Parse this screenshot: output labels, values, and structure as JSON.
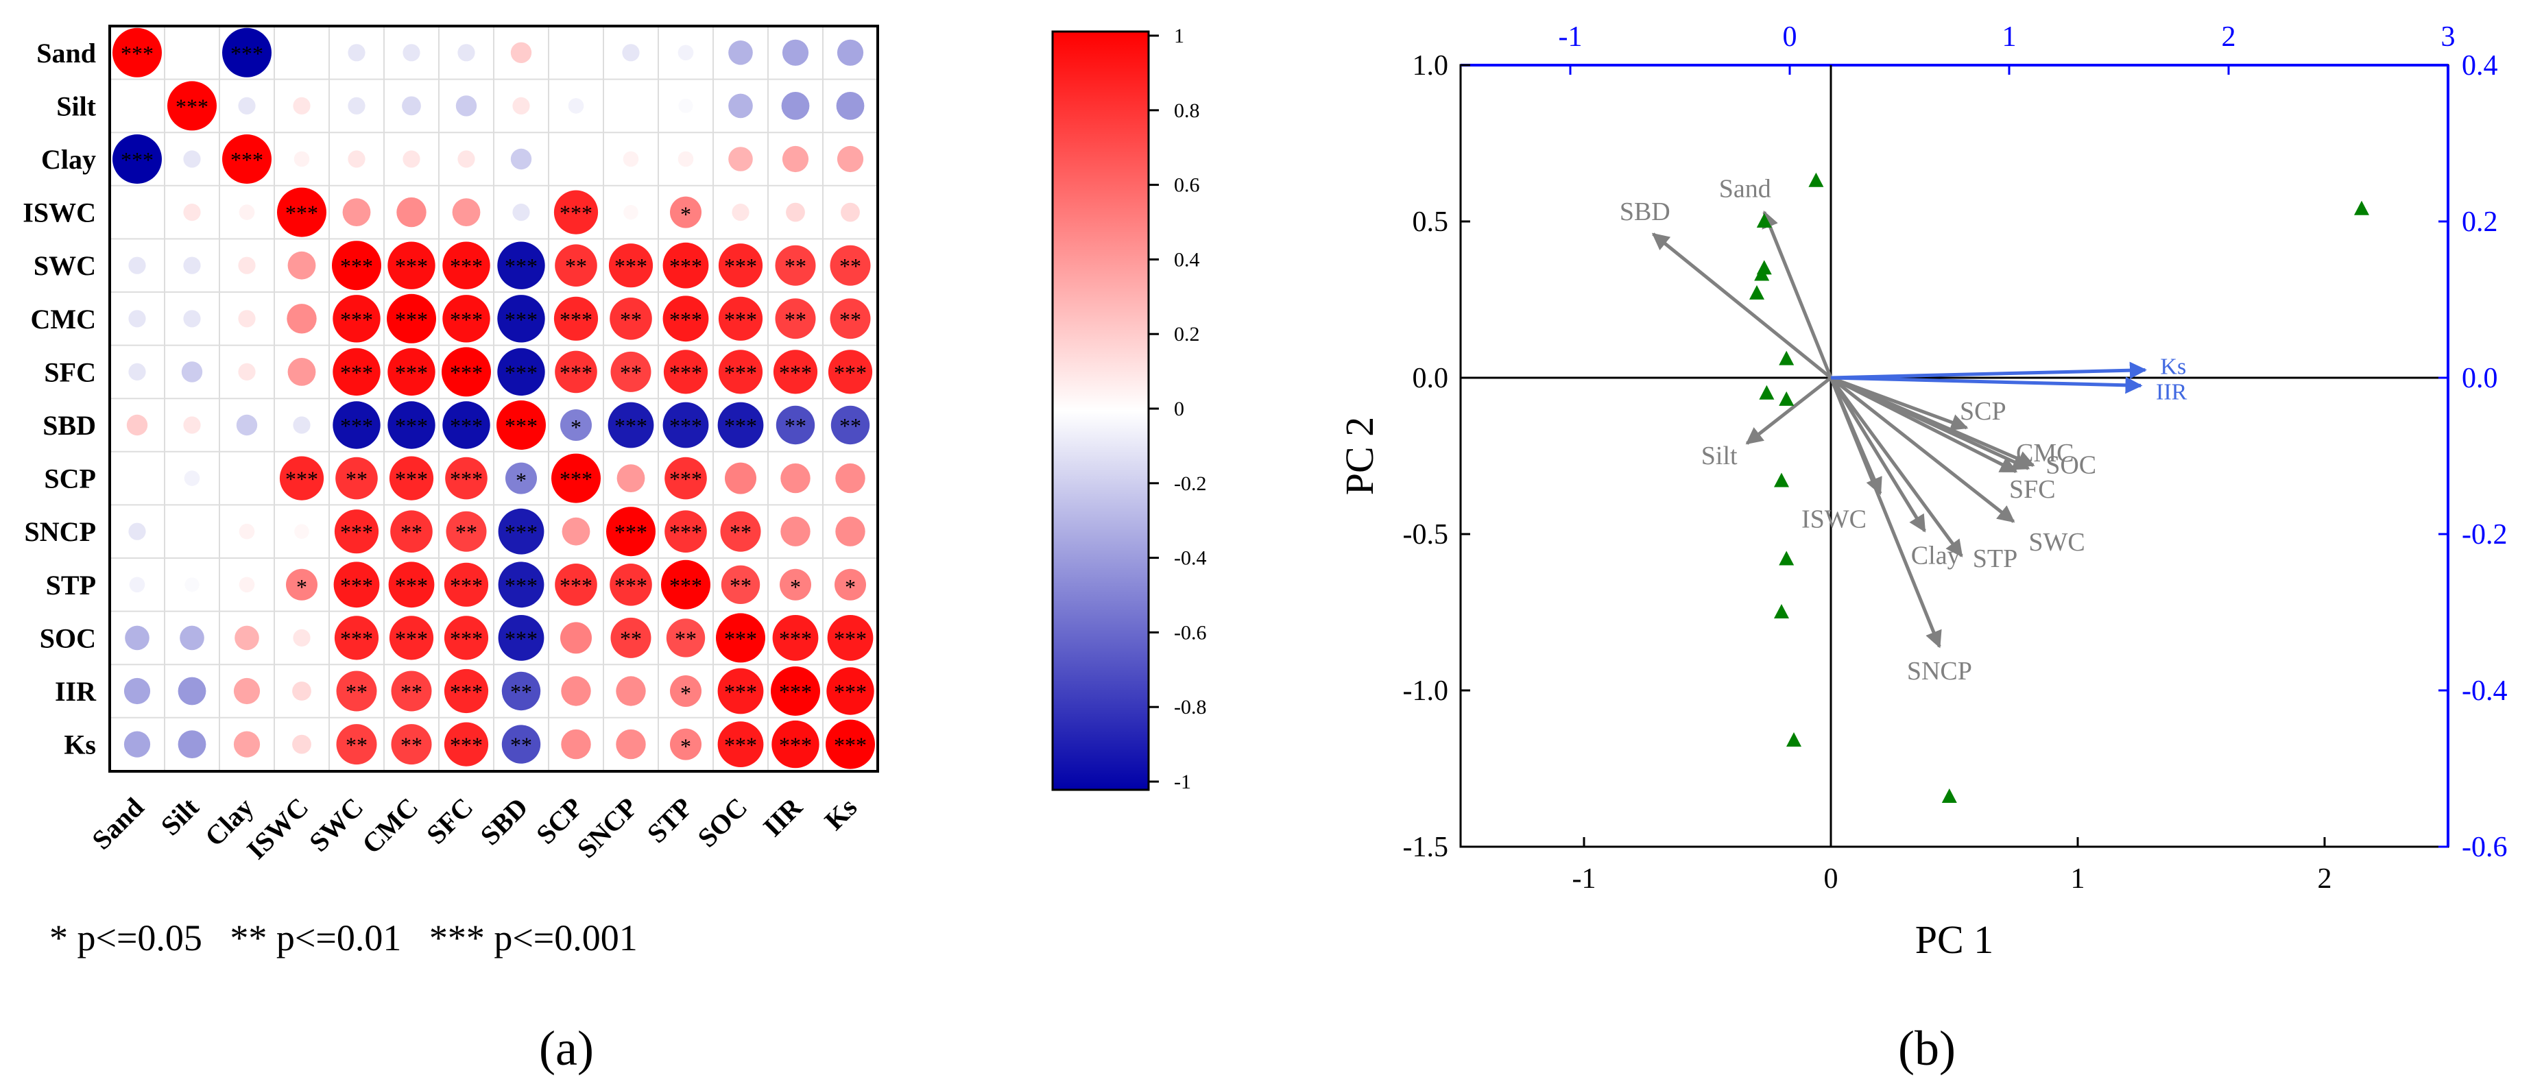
{
  "chart_data": [
    {
      "type": "heatmap",
      "panel_label": "(a)",
      "variables": [
        "Sand",
        "Silt",
        "Clay",
        "ISWC",
        "SWC",
        "CMC",
        "SFC",
        "SBD",
        "SCP",
        "SNCP",
        "STP",
        "SOC",
        "IIR",
        "Ks"
      ],
      "matrix": [
        [
          1.0,
          0.0,
          -1.0,
          0.0,
          -0.1,
          -0.1,
          -0.1,
          0.2,
          0.0,
          -0.1,
          -0.05,
          -0.3,
          -0.35,
          -0.35
        ],
        [
          0.0,
          1.0,
          -0.1,
          0.1,
          -0.1,
          -0.15,
          -0.2,
          0.1,
          -0.05,
          0.0,
          -0.02,
          -0.3,
          -0.4,
          -0.4
        ],
        [
          -1.0,
          -0.1,
          1.0,
          0.05,
          0.1,
          0.1,
          0.1,
          -0.2,
          0.0,
          0.05,
          0.05,
          0.3,
          0.35,
          0.35
        ],
        [
          0.0,
          0.1,
          0.05,
          1.0,
          0.4,
          0.45,
          0.4,
          -0.1,
          0.85,
          0.03,
          0.5,
          0.1,
          0.15,
          0.15
        ],
        [
          -0.1,
          -0.1,
          0.1,
          0.4,
          1.0,
          0.95,
          0.95,
          -0.95,
          0.8,
          0.85,
          0.9,
          0.85,
          0.75,
          0.75
        ],
        [
          -0.1,
          -0.1,
          0.1,
          0.45,
          0.95,
          1.0,
          0.95,
          -0.95,
          0.85,
          0.8,
          0.9,
          0.85,
          0.75,
          0.75
        ],
        [
          -0.1,
          -0.2,
          0.1,
          0.4,
          0.95,
          0.95,
          1.0,
          -0.95,
          0.8,
          0.75,
          0.85,
          0.85,
          0.85,
          0.85
        ],
        [
          0.2,
          0.1,
          -0.2,
          -0.1,
          -0.95,
          -0.95,
          -0.95,
          1.0,
          -0.5,
          -0.9,
          -0.9,
          -0.9,
          -0.7,
          -0.7
        ],
        [
          0.0,
          -0.05,
          0.0,
          0.85,
          0.8,
          0.85,
          0.8,
          -0.5,
          1.0,
          0.4,
          0.8,
          0.5,
          0.45,
          0.45
        ],
        [
          -0.1,
          0.0,
          0.05,
          0.03,
          0.85,
          0.8,
          0.75,
          -0.9,
          0.4,
          1.0,
          0.8,
          0.75,
          0.45,
          0.45
        ],
        [
          -0.05,
          -0.02,
          0.05,
          0.5,
          0.9,
          0.9,
          0.85,
          -0.9,
          0.8,
          0.8,
          1.0,
          0.7,
          0.5,
          0.5
        ],
        [
          -0.3,
          -0.3,
          0.3,
          0.1,
          0.85,
          0.85,
          0.85,
          -0.9,
          0.5,
          0.75,
          0.7,
          1.0,
          0.9,
          0.9
        ],
        [
          -0.35,
          -0.4,
          0.35,
          0.15,
          0.75,
          0.75,
          0.85,
          -0.7,
          0.45,
          0.45,
          0.5,
          0.9,
          1.0,
          0.95
        ],
        [
          -0.35,
          -0.4,
          0.35,
          0.15,
          0.75,
          0.75,
          0.85,
          -0.7,
          0.45,
          0.45,
          0.5,
          0.9,
          0.95,
          1.0
        ]
      ],
      "significance": [
        [
          "***",
          "",
          "***",
          "",
          "",
          "",
          "",
          "",
          "",
          "",
          "",
          "",
          "",
          ""
        ],
        [
          "",
          "***",
          "",
          "",
          "",
          "",
          "",
          "",
          "",
          "",
          "",
          "",
          "",
          ""
        ],
        [
          "***",
          "",
          "***",
          "",
          "",
          "",
          "",
          "",
          "",
          "",
          "",
          "",
          "",
          ""
        ],
        [
          "",
          "",
          "",
          "***",
          "",
          "",
          "",
          "",
          "***",
          "",
          "*",
          "",
          "",
          ""
        ],
        [
          "",
          "",
          "",
          "",
          "***",
          "***",
          "***",
          "***",
          "**",
          "***",
          "***",
          "***",
          "**",
          "**"
        ],
        [
          "",
          "",
          "",
          "",
          "***",
          "***",
          "***",
          "***",
          "***",
          "**",
          "***",
          "***",
          "**",
          "**"
        ],
        [
          "",
          "",
          "",
          "",
          "***",
          "***",
          "***",
          "***",
          "***",
          "**",
          "***",
          "***",
          "***",
          "***"
        ],
        [
          "",
          "",
          "",
          "",
          "***",
          "***",
          "***",
          "***",
          "*",
          "***",
          "***",
          "***",
          "**",
          "**"
        ],
        [
          "",
          "",
          "",
          "***",
          "**",
          "***",
          "***",
          "*",
          "***",
          "",
          "***",
          "",
          "",
          ""
        ],
        [
          "",
          "",
          "",
          "",
          "***",
          "**",
          "**",
          "***",
          "",
          "***",
          "***",
          "**",
          "",
          ""
        ],
        [
          "",
          "",
          "",
          "*",
          "***",
          "***",
          "***",
          "***",
          "***",
          "***",
          "***",
          "**",
          "*",
          "*"
        ],
        [
          "",
          "",
          "",
          "",
          "***",
          "***",
          "***",
          "***",
          "",
          "**",
          "**",
          "***",
          "***",
          "***"
        ],
        [
          "",
          "",
          "",
          "",
          "**",
          "**",
          "***",
          "**",
          "",
          "",
          "*",
          "***",
          "***",
          "***"
        ],
        [
          "",
          "",
          "",
          "",
          "**",
          "**",
          "***",
          "**",
          "",
          "",
          "*",
          "***",
          "***",
          "***"
        ]
      ],
      "colorbar": {
        "min": -1,
        "max": 1,
        "ticks": [
          "1",
          "0.8",
          "0.6",
          "0.4",
          "0.2",
          "0",
          "-0.2",
          "-0.4",
          "-0.6",
          "-0.8",
          "-1"
        ],
        "high_color": "#ff0000",
        "mid_color": "#ffffff",
        "low_color": "#0000a8"
      },
      "legend_text": "* p<=0.05   ** p<=0.01   *** p<=0.001"
    },
    {
      "type": "scatter",
      "subtype": "biplot",
      "panel_label": "(b)",
      "xlabel": "PC 1",
      "ylabel": "PC 2",
      "xlim": [
        -1.5,
        2.5
      ],
      "ylim": [
        -1.5,
        1.0
      ],
      "x_ticks": [
        "-1",
        "0",
        "1",
        "2"
      ],
      "y_ticks": [
        "1.0",
        "0.5",
        "0.0",
        "-0.5",
        "-1.0",
        "-1.5"
      ],
      "top_axis": {
        "range": [
          -1.5,
          3
        ],
        "ticks": [
          "-1",
          "0",
          "1",
          "2",
          "3"
        ],
        "color": "#0000ff"
      },
      "right_axis": {
        "range": [
          -0.6,
          0.4
        ],
        "ticks": [
          "0.4",
          "0.2",
          "0.0",
          "-0.2",
          "-0.4",
          "-0.6"
        ],
        "color": "#0000ff"
      },
      "points": [
        {
          "x": -0.06,
          "y": 0.63
        },
        {
          "x": -0.27,
          "y": 0.5
        },
        {
          "x": -0.27,
          "y": 0.35
        },
        {
          "x": -0.28,
          "y": 0.33
        },
        {
          "x": -0.3,
          "y": 0.27
        },
        {
          "x": -0.18,
          "y": 0.06
        },
        {
          "x": -0.26,
          "y": -0.05
        },
        {
          "x": -0.18,
          "y": -0.07
        },
        {
          "x": -0.2,
          "y": -0.33
        },
        {
          "x": -0.18,
          "y": -0.58
        },
        {
          "x": -0.2,
          "y": -0.75
        },
        {
          "x": -0.15,
          "y": -1.16
        },
        {
          "x": 0.48,
          "y": -1.34
        },
        {
          "x": 2.15,
          "y": 0.54
        }
      ],
      "point_color": "#008000",
      "loadings": [
        {
          "label": "Sand",
          "x": -0.27,
          "y": 0.53
        },
        {
          "label": "SBD",
          "x": -0.72,
          "y": 0.46
        },
        {
          "label": "Silt",
          "x": -0.34,
          "y": -0.21
        },
        {
          "label": "ISWC",
          "x": 0.2,
          "y": -0.37
        },
        {
          "label": "Clay",
          "x": 0.38,
          "y": -0.49
        },
        {
          "label": "STP",
          "x": 0.53,
          "y": -0.57
        },
        {
          "label": "SNCP",
          "x": 0.44,
          "y": -0.86
        },
        {
          "label": "SWC",
          "x": 0.74,
          "y": -0.46
        },
        {
          "label": "SFC",
          "x": 0.75,
          "y": -0.3
        },
        {
          "label": "CMC",
          "x": 0.8,
          "y": -0.29
        },
        {
          "label": "SOC",
          "x": 0.82,
          "y": -0.28
        },
        {
          "label": "SCP",
          "x": 0.55,
          "y": -0.16
        }
      ],
      "loading_color": "#808080",
      "secondary_loadings": [
        {
          "label": "Ks",
          "top_x": 1.62,
          "right_y": 0.01
        },
        {
          "label": "IIR",
          "top_x": 1.6,
          "right_y": -0.01
        }
      ],
      "secondary_color": "#4169e1"
    }
  ]
}
